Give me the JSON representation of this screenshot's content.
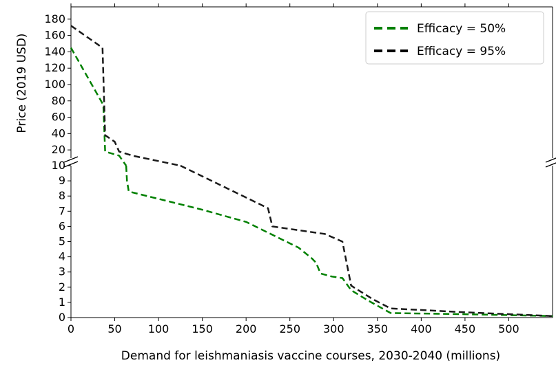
{
  "chart_data": {
    "type": "line",
    "title": "",
    "xlabel": "Demand for leishmaniasis vaccine courses, 2030-2040 (millions)",
    "ylabel": "Price (2019 USD)",
    "x_scale": "linear",
    "xlim": [
      0,
      550
    ],
    "x_ticks": [
      0,
      50,
      100,
      150,
      200,
      250,
      300,
      350,
      400,
      450,
      500
    ],
    "y_scale": "broken",
    "y_break": "between 10 and 20",
    "ylim_lower": [
      0,
      10
    ],
    "ylim_upper": [
      10,
      195
    ],
    "y_ticks_lower": [
      0,
      1,
      2,
      3,
      4,
      5,
      6,
      7,
      8,
      9,
      10
    ],
    "y_ticks_upper": [
      20,
      40,
      60,
      80,
      100,
      120,
      140,
      160,
      180
    ],
    "grid": false,
    "legend_position": "top-right",
    "series": [
      {
        "name": "Efficacy = 50%",
        "color": "#008000",
        "dash": "dashed",
        "x": [
          0,
          37,
          39,
          55,
          63,
          64,
          66,
          150,
          200,
          260,
          275,
          280,
          285,
          298,
          310,
          320,
          340,
          365,
          450,
          550
        ],
        "y": [
          145,
          75,
          18,
          13,
          10,
          9,
          8.3,
          7.1,
          6.3,
          4.6,
          3.9,
          3.6,
          2.9,
          2.7,
          2.6,
          1.8,
          1.1,
          0.3,
          0.22,
          0.1
        ]
      },
      {
        "name": "Efficacy = 95%",
        "color": "#1a1a1a",
        "dash": "dashed",
        "x": [
          0,
          36,
          39,
          50,
          55,
          70,
          125,
          200,
          225,
          230,
          290,
          310,
          320,
          345,
          365,
          450,
          550
        ],
        "y": [
          172,
          145,
          38,
          30,
          18,
          13,
          10,
          7.9,
          7.2,
          6,
          5.5,
          5,
          2.1,
          1.2,
          0.6,
          0.35,
          0.1
        ]
      }
    ]
  }
}
